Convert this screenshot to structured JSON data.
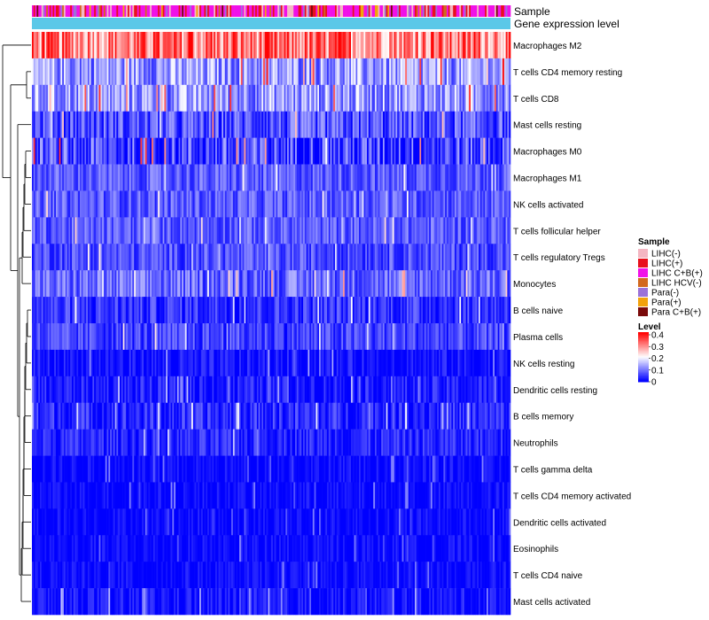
{
  "chart_data": {
    "type": "heatmap",
    "annotation_tracks": [
      "Sample",
      "Gene expression level"
    ],
    "rows": [
      {
        "label": "Macrophages M2",
        "mean": 0.3,
        "spread": 0.1
      },
      {
        "label": "T cells CD4 memory resting",
        "mean": 0.12,
        "spread": 0.08
      },
      {
        "label": "T cells CD8",
        "mean": 0.12,
        "spread": 0.08
      },
      {
        "label": "Mast cells resting",
        "mean": 0.06,
        "spread": 0.07
      },
      {
        "label": "Macrophages M0",
        "mean": 0.05,
        "spread": 0.09
      },
      {
        "label": "Macrophages M1",
        "mean": 0.07,
        "spread": 0.05
      },
      {
        "label": "NK cells activated",
        "mean": 0.07,
        "spread": 0.05
      },
      {
        "label": "T cells follicular helper",
        "mean": 0.07,
        "spread": 0.05
      },
      {
        "label": "T cells regulatory  Tregs",
        "mean": 0.06,
        "spread": 0.05
      },
      {
        "label": "Monocytes",
        "mean": 0.08,
        "spread": 0.06
      },
      {
        "label": "B cells naive",
        "mean": 0.04,
        "spread": 0.05
      },
      {
        "label": "Plasma cells",
        "mean": 0.05,
        "spread": 0.05
      },
      {
        "label": "NK cells resting",
        "mean": 0.01,
        "spread": 0.04
      },
      {
        "label": "Dendritic cells resting",
        "mean": 0.02,
        "spread": 0.04
      },
      {
        "label": "B cells memory",
        "mean": 0.03,
        "spread": 0.05
      },
      {
        "label": "Neutrophils",
        "mean": 0.03,
        "spread": 0.04
      },
      {
        "label": "T cells gamma delta",
        "mean": 0.005,
        "spread": 0.03
      },
      {
        "label": "T cells CD4 memory activated",
        "mean": 0.005,
        "spread": 0.03
      },
      {
        "label": "Dendritic cells activated",
        "mean": 0.005,
        "spread": 0.03
      },
      {
        "label": "Eosinophils",
        "mean": 0.005,
        "spread": 0.03
      },
      {
        "label": "T cells CD4 naive",
        "mean": 0.005,
        "spread": 0.03
      },
      {
        "label": "Mast cells activated",
        "mean": 0.01,
        "spread": 0.04
      }
    ],
    "n_samples": 300,
    "sample_legend": {
      "title": "Sample",
      "entries": [
        {
          "label": "LIHC(-)",
          "color": "#f4b6c2"
        },
        {
          "label": "LIHC(+)",
          "color": "#e8101c"
        },
        {
          "label": "LIHC C+B(+)",
          "color": "#f011e8"
        },
        {
          "label": "LIHC HCV(-)",
          "color": "#d2691e"
        },
        {
          "label": "Para(-)",
          "color": "#9b72d8"
        },
        {
          "label": "Para(+)",
          "color": "#f2a20c"
        },
        {
          "label": "Para C+B(+)",
          "color": "#7a0a0a"
        }
      ]
    },
    "level_legend": {
      "title": "Level",
      "ticks": [
        "0.4",
        "0.3",
        "0.2",
        "0.1",
        "0"
      ],
      "range": [
        0,
        0.4
      ],
      "colors": [
        "#0000ff",
        "#ffffff",
        "#ff0000"
      ]
    },
    "expression_track_color": "#5bc8e8"
  }
}
